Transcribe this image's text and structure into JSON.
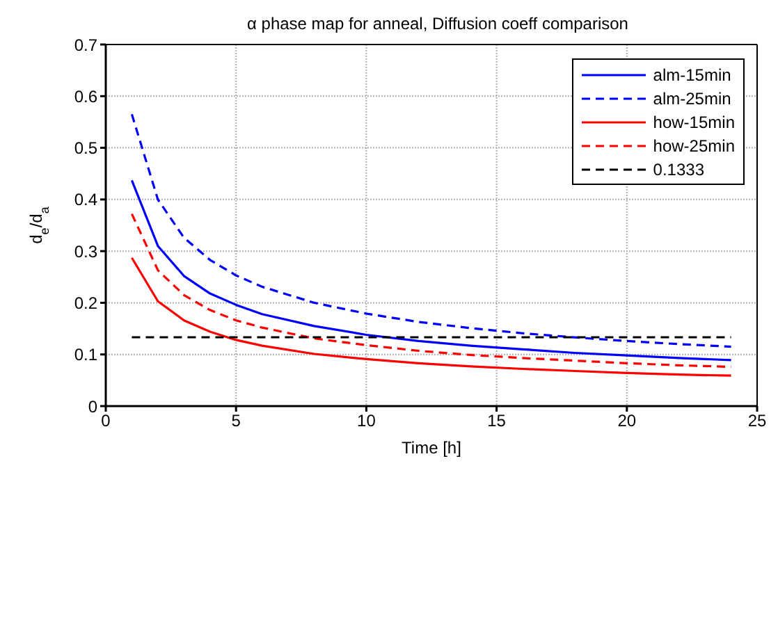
{
  "chart_data": {
    "type": "line",
    "title": "α phase map for anneal, Diffusion coeff comparison",
    "xlabel": "Time [h]",
    "ylabel": "d$_{e}$/d$_{a}$",
    "x": [
      1,
      2,
      3,
      4,
      5,
      6,
      8,
      10,
      12,
      14,
      16,
      18,
      20,
      22,
      24
    ],
    "series": [
      {
        "name": "alm-15min",
        "color": "#0000ff",
        "line_style": "solid",
        "values": [
          0.437,
          0.31,
          0.252,
          0.218,
          0.196,
          0.178,
          0.155,
          0.138,
          0.126,
          0.117,
          0.11,
          0.103,
          0.098,
          0.093,
          0.089
        ]
      },
      {
        "name": "alm-25min",
        "color": "#0000ff",
        "line_style": "dashed",
        "values": [
          0.565,
          0.4,
          0.326,
          0.283,
          0.253,
          0.231,
          0.2,
          0.179,
          0.163,
          0.151,
          0.141,
          0.133,
          0.126,
          0.12,
          0.115
        ]
      },
      {
        "name": "how-15min",
        "color": "#ff0000",
        "line_style": "solid",
        "values": [
          0.287,
          0.203,
          0.166,
          0.144,
          0.128,
          0.117,
          0.101,
          0.091,
          0.083,
          0.077,
          0.072,
          0.068,
          0.064,
          0.061,
          0.059
        ]
      },
      {
        "name": "how-25min",
        "color": "#ff0000",
        "line_style": "dashed",
        "values": [
          0.372,
          0.263,
          0.215,
          0.186,
          0.166,
          0.152,
          0.131,
          0.118,
          0.107,
          0.099,
          0.093,
          0.088,
          0.083,
          0.079,
          0.076
        ]
      },
      {
        "name": "0.1333",
        "color": "#000000",
        "line_style": "dashed",
        "x": [
          1,
          24
        ],
        "values": [
          0.1333,
          0.1333
        ]
      }
    ],
    "xlim": [
      0,
      25
    ],
    "xticks": [
      0,
      5,
      10,
      15,
      20,
      25
    ],
    "ylim": [
      0,
      0.7
    ],
    "yticks": [
      0,
      0.1,
      0.2,
      0.3,
      0.4,
      0.5,
      0.6,
      0.7
    ],
    "grid": true,
    "legend": "top right",
    "marker": "none"
  }
}
